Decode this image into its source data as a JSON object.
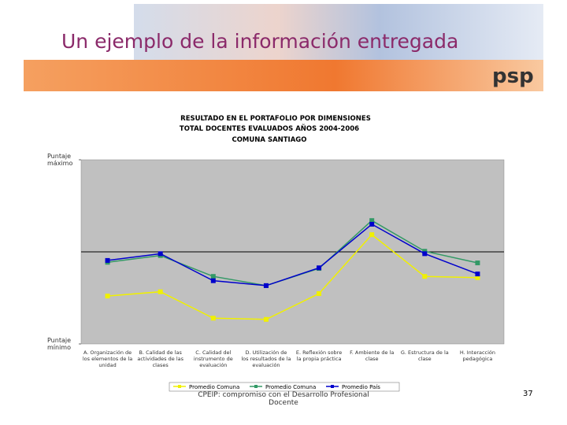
{
  "slide_title": "Un ejemplo de la información entregada",
  "logo": "psp",
  "footer": "CPEIP: compromiso con el Desarrollo Profesional Docente",
  "page_number": "37",
  "chart_data": {
    "type": "line",
    "title": "RESULTADO EN EL PORTAFOLIO POR DIMENSIONES",
    "subtitle": [
      "TOTAL DOCENTES EVALUADOS AÑOS 2004-2006",
      "COMUNA SANTIAGO"
    ],
    "categories": [
      "A. Organización de los elementos de la unidad",
      "B. Calidad de las actividades de las clases",
      "C. Calidad del instrumento de evaluación",
      "D. Utilización de los resultados de la evaluación",
      "E. Reflexión sobre la propia práctica",
      "F. Ambiente de la clase",
      "G. Estructura de la clase",
      "H. Interacción pedagógica"
    ],
    "series": [
      {
        "name": "Promedio Comuna",
        "color": "#f0f000",
        "values": [
          1.78,
          1.85,
          1.42,
          1.4,
          1.82,
          2.78,
          2.1,
          2.08
        ]
      },
      {
        "name": "Promedio Comuna",
        "color": "#339966",
        "values": [
          2.33,
          2.44,
          2.1,
          1.95,
          2.23,
          3.01,
          2.51,
          2.32
        ]
      },
      {
        "name": "Promedio País",
        "color": "#0000cc",
        "values": [
          2.36,
          2.47,
          2.03,
          1.95,
          2.24,
          2.95,
          2.47,
          2.14
        ]
      }
    ],
    "ylim": [
      1,
      4
    ],
    "yticks": [
      {
        "value": 4,
        "label": "Puntaje máximo"
      },
      {
        "value": 1,
        "label": "Puntaje mínimo"
      }
    ],
    "reference_line": 2.5,
    "plot_background": "#c0c0c0"
  }
}
